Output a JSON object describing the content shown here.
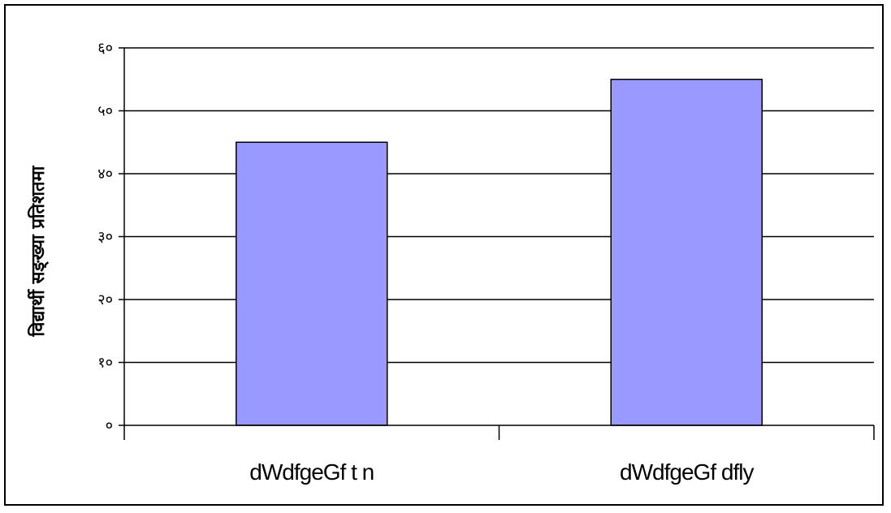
{
  "chart_data": {
    "type": "bar",
    "categories": [
      "dWdfgeGf t n",
      "dWdfgeGf dfly"
    ],
    "values": [
      45,
      55
    ],
    "ylabel": "विद्यार्थी सङ्ख्या प्रतिशतमा",
    "xlabel": "",
    "ylim": [
      0,
      60
    ],
    "yticks": [
      0,
      10,
      20,
      30,
      40,
      50,
      60
    ],
    "ytick_labels": [
      "०",
      "१०",
      "२०",
      "३०",
      "४०",
      "५०",
      "६०"
    ],
    "grid": true,
    "legend": "none",
    "colors": {
      "bar_fill": "#9999ff",
      "bar_stroke": "#000000",
      "grid": "#000000",
      "axis": "#000000"
    }
  }
}
